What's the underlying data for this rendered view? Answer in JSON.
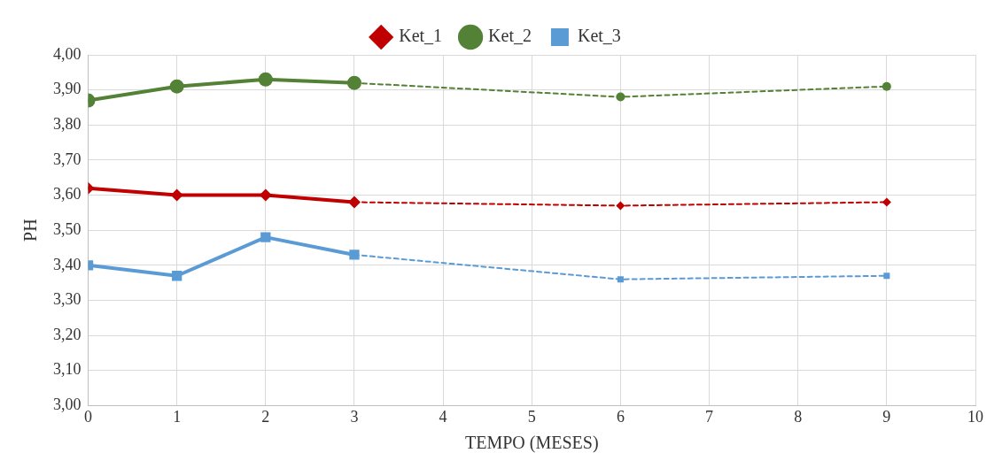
{
  "chart_data": {
    "type": "line",
    "xlabel": "TEMPO (MESES)",
    "ylabel": "PH",
    "xlim": [
      0,
      10
    ],
    "xticks": [
      0,
      1,
      2,
      3,
      4,
      5,
      6,
      7,
      8,
      9,
      10
    ],
    "ylim": [
      3,
      4
    ],
    "yticks": [
      {
        "value": 3,
        "label": "3,00"
      },
      {
        "value": 3.1,
        "label": "3,10"
      },
      {
        "value": 3.2,
        "label": "3,20"
      },
      {
        "value": 3.3,
        "label": "3,30"
      },
      {
        "value": 3.4,
        "label": "3,40"
      },
      {
        "value": 3.5,
        "label": "3,50"
      },
      {
        "value": 3.6,
        "label": "3,60"
      },
      {
        "value": 3.7,
        "label": "3,70"
      },
      {
        "value": 3.8,
        "label": "3,80"
      },
      {
        "value": 3.9,
        "label": "3,90"
      },
      {
        "value": 4,
        "label": "4,00"
      }
    ],
    "grid": true,
    "legend": "top",
    "series": [
      {
        "name": "Ket_1",
        "color": "#c00000",
        "marker": "diamond",
        "line_style": "solid",
        "x": [
          0,
          1,
          2,
          3
        ],
        "values": [
          3.62,
          3.6,
          3.6,
          3.58
        ]
      },
      {
        "name": "Ket_2",
        "color": "#538135",
        "marker": "circle",
        "line_style": "solid",
        "x": [
          0,
          1,
          2,
          3
        ],
        "values": [
          3.87,
          3.91,
          3.93,
          3.92
        ]
      },
      {
        "name": "Ket_3",
        "color": "#5b9bd5",
        "marker": "square",
        "line_style": "solid",
        "x": [
          0,
          1,
          2,
          3
        ],
        "values": [
          3.4,
          3.37,
          3.48,
          3.43
        ]
      },
      {
        "color": "#c00000",
        "marker": "diamond",
        "line_style": "dashed",
        "x": [
          3,
          6,
          9
        ],
        "values": [
          3.58,
          3.57,
          3.58
        ]
      },
      {
        "color": "#538135",
        "marker": "circle",
        "line_style": "dashed",
        "x": [
          3,
          6,
          9
        ],
        "values": [
          3.92,
          3.88,
          3.91
        ]
      },
      {
        "color": "#5b9bd5",
        "marker": "square",
        "line_style": "dashed",
        "x": [
          3,
          6,
          9
        ],
        "values": [
          3.43,
          3.36,
          3.37
        ]
      }
    ]
  }
}
